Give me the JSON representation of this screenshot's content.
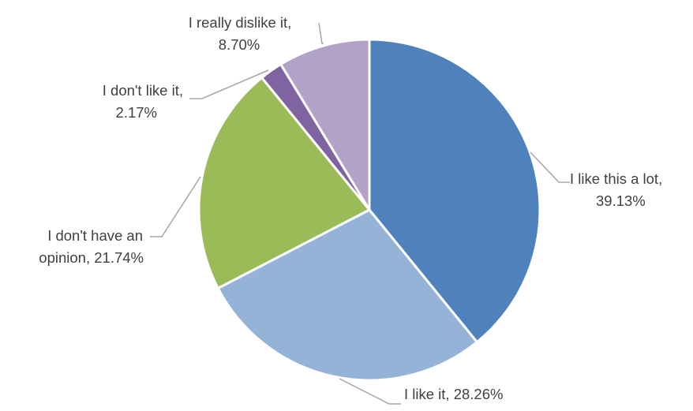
{
  "chart_data": {
    "type": "pie",
    "title": "",
    "categories": [
      "I like this a lot",
      "I like it",
      "I don't have an opinion",
      "I don't like it",
      "I really dislike it"
    ],
    "values": [
      39.13,
      28.26,
      21.74,
      2.17,
      8.7
    ],
    "colors": [
      "#4f81bd",
      "#95b3d7",
      "#9bbb59",
      "#8064a2",
      "#b2a2c7"
    ],
    "labels": [
      {
        "lines": [
          "I like this a lot,",
          "39.13%"
        ]
      },
      {
        "lines": [
          "I like it, 28.26%"
        ]
      },
      {
        "lines": [
          "I don't have an",
          "opinion, 21.74%"
        ]
      },
      {
        "lines": [
          "I don't like it,",
          "2.17%"
        ]
      },
      {
        "lines": [
          "I really dislike it,",
          "8.70%"
        ]
      }
    ],
    "start_angle": "12 o'clock",
    "direction": "clockwise",
    "legend": "none"
  }
}
